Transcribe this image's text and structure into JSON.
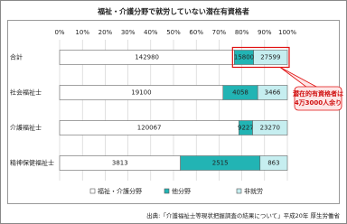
{
  "chart_data": {
    "type": "bar",
    "orientation": "horizontal",
    "stacking": "percent",
    "title": "福祉・介護分野で就労していない潜在有資格者",
    "categories": [
      "合計",
      "社会福祉士",
      "介護福祉士",
      "精神保健福祉士"
    ],
    "series": [
      {
        "name": "福祉・介護分野",
        "color": "#ffffff",
        "values": [
          142980,
          19100,
          120067,
          3813
        ]
      },
      {
        "name": "他分野",
        "color": "#22b4b4",
        "values": [
          15800,
          4058,
          9227,
          2515
        ]
      },
      {
        "name": "非就労",
        "color": "#c6eef0",
        "values": [
          27599,
          3466,
          23270,
          863
        ]
      }
    ],
    "xlim": [
      0,
      100
    ],
    "xticks": [
      {
        "value": 0,
        "label": "0%"
      },
      {
        "value": 10,
        "label": "10%"
      },
      {
        "value": 20,
        "label": "20%"
      },
      {
        "value": 30,
        "label": "30%"
      },
      {
        "value": 40,
        "label": "40%"
      },
      {
        "value": 50,
        "label": "50%"
      },
      {
        "value": 60,
        "label": "60%"
      },
      {
        "value": 70,
        "label": "70%"
      },
      {
        "value": 80,
        "label": "80%"
      },
      {
        "value": 90,
        "label": "90%"
      },
      {
        "value": 100,
        "label": "100%"
      }
    ],
    "grid": true,
    "legend": "bottom",
    "annotation": [
      "潜在的有資格者は",
      "4万3000人余り"
    ],
    "source": "出典:「介護福祉士等現状把握調査の結果について」平成20年 厚生労働省"
  }
}
